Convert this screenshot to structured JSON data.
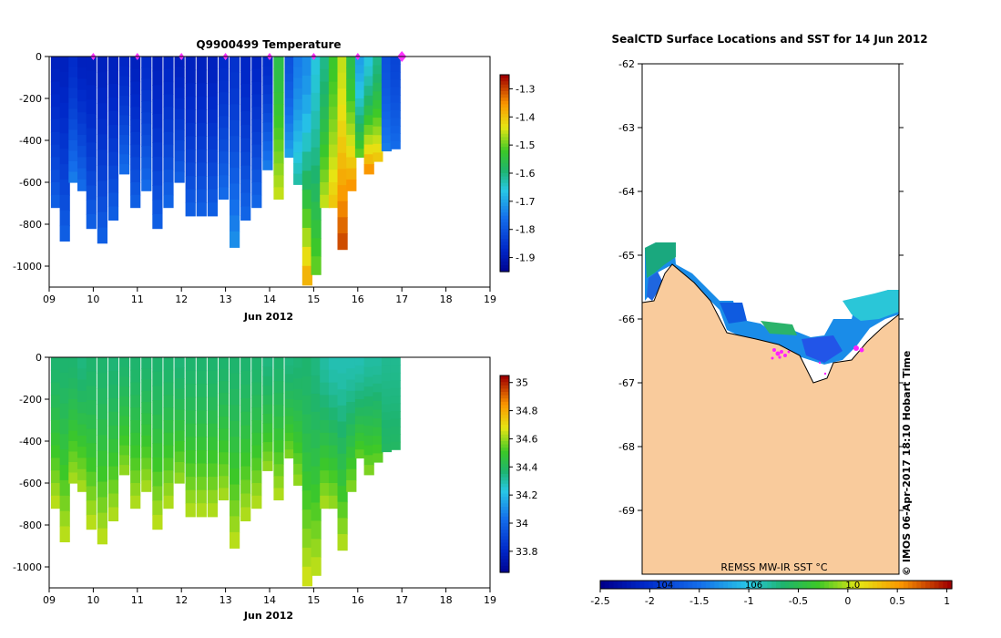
{
  "chart_data": [
    {
      "type": "heatmap",
      "title": "Q9900499  Temperature",
      "xlabel": "Jun 2012",
      "x_ticks": [
        "09",
        "10",
        "11",
        "12",
        "13",
        "14",
        "15",
        "16",
        "17",
        "18",
        "19"
      ],
      "xlim": [
        9,
        19
      ],
      "ylim": [
        -1100,
        0
      ],
      "y_ticks": [
        0,
        -200,
        -400,
        -600,
        -800,
        -1000
      ],
      "colorbar": {
        "min": -1.95,
        "max": -1.25,
        "ticks": [
          -1.3,
          -1.4,
          -1.5,
          -1.6,
          -1.7,
          -1.8,
          -1.9
        ]
      },
      "surface_markers_days": [
        10.0,
        11.0,
        12.0,
        13.0,
        14.0,
        15.0,
        16.0,
        17.0
      ],
      "profiles": [
        {
          "day": 9.15,
          "depth": -720,
          "surf": -1.88,
          "deep": -1.78
        },
        {
          "day": 9.35,
          "depth": -880,
          "surf": -1.88,
          "deep": -1.78
        },
        {
          "day": 9.55,
          "depth": -600,
          "surf": -1.86,
          "deep": -1.74
        },
        {
          "day": 9.75,
          "depth": -640,
          "surf": -1.88,
          "deep": -1.76
        },
        {
          "day": 9.95,
          "depth": -820,
          "surf": -1.88,
          "deep": -1.78
        },
        {
          "day": 10.2,
          "depth": -890,
          "surf": -1.88,
          "deep": -1.78
        },
        {
          "day": 10.45,
          "depth": -780,
          "surf": -1.88,
          "deep": -1.78
        },
        {
          "day": 10.7,
          "depth": -560,
          "surf": -1.87,
          "deep": -1.76
        },
        {
          "day": 10.95,
          "depth": -720,
          "surf": -1.88,
          "deep": -1.78
        },
        {
          "day": 11.2,
          "depth": -640,
          "surf": -1.86,
          "deep": -1.76
        },
        {
          "day": 11.45,
          "depth": -820,
          "surf": -1.88,
          "deep": -1.78
        },
        {
          "day": 11.7,
          "depth": -720,
          "surf": -1.87,
          "deep": -1.77
        },
        {
          "day": 11.95,
          "depth": -600,
          "surf": -1.88,
          "deep": -1.78
        },
        {
          "day": 12.2,
          "depth": -760,
          "surf": -1.88,
          "deep": -1.78
        },
        {
          "day": 12.45,
          "depth": -760,
          "surf": -1.88,
          "deep": -1.78
        },
        {
          "day": 12.7,
          "depth": -760,
          "surf": -1.88,
          "deep": -1.78
        },
        {
          "day": 12.95,
          "depth": -680,
          "surf": -1.86,
          "deep": -1.76
        },
        {
          "day": 13.2,
          "depth": -910,
          "surf": -1.85,
          "deep": -1.72
        },
        {
          "day": 13.45,
          "depth": -780,
          "surf": -1.87,
          "deep": -1.77
        },
        {
          "day": 13.7,
          "depth": -720,
          "surf": -1.87,
          "deep": -1.77
        },
        {
          "day": 13.95,
          "depth": -540,
          "surf": -1.86,
          "deep": -1.74
        },
        {
          "day": 14.2,
          "depth": -680,
          "surf": -1.55,
          "deep": -1.45
        },
        {
          "day": 14.45,
          "depth": -480,
          "surf": -1.8,
          "deep": -1.7
        },
        {
          "day": 14.65,
          "depth": -610,
          "surf": -1.74,
          "deep": -1.62
        },
        {
          "day": 14.85,
          "depth": -1090,
          "surf": -1.72,
          "deep": -1.38
        },
        {
          "day": 15.05,
          "depth": -1040,
          "surf": -1.65,
          "deep": -1.5
        },
        {
          "day": 15.25,
          "depth": -720,
          "surf": -1.6,
          "deep": -1.45
        },
        {
          "day": 15.45,
          "depth": -720,
          "surf": -1.52,
          "deep": -1.4
        },
        {
          "day": 15.65,
          "depth": -920,
          "surf": -1.45,
          "deep": -1.3
        },
        {
          "day": 15.85,
          "depth": -640,
          "surf": -1.55,
          "deep": -1.35
        },
        {
          "day": 16.05,
          "depth": -480,
          "surf": -1.7,
          "deep": -1.5
        },
        {
          "day": 16.25,
          "depth": -560,
          "surf": -1.65,
          "deep": -1.35
        },
        {
          "day": 16.45,
          "depth": -500,
          "surf": -1.6,
          "deep": -1.4
        },
        {
          "day": 16.65,
          "depth": -450,
          "surf": -1.8,
          "deep": -1.74
        },
        {
          "day": 16.85,
          "depth": -440,
          "surf": -1.82,
          "deep": -1.76
        }
      ]
    },
    {
      "type": "heatmap",
      "title": "",
      "xlabel": "Jun 2012",
      "x_ticks": [
        "09",
        "10",
        "11",
        "12",
        "13",
        "14",
        "15",
        "16",
        "17",
        "18",
        "19"
      ],
      "xlim": [
        9,
        19
      ],
      "ylim": [
        -1100,
        0
      ],
      "y_ticks": [
        0,
        -200,
        -400,
        -600,
        -800,
        -1000
      ],
      "colorbar": {
        "min": 33.65,
        "max": 35.05,
        "ticks": [
          35,
          34.8,
          34.6,
          34.4,
          34.2,
          34,
          33.8
        ]
      },
      "profiles": [
        {
          "day": 9.15,
          "depth": -720,
          "surf": 34.38,
          "deep": 34.64
        },
        {
          "day": 9.35,
          "depth": -880,
          "surf": 34.38,
          "deep": 34.64
        },
        {
          "day": 9.55,
          "depth": -600,
          "surf": 34.38,
          "deep": 34.62
        },
        {
          "day": 9.75,
          "depth": -640,
          "surf": 34.36,
          "deep": 34.62
        },
        {
          "day": 9.95,
          "depth": -820,
          "surf": 34.38,
          "deep": 34.64
        },
        {
          "day": 10.2,
          "depth": -890,
          "surf": 34.38,
          "deep": 34.64
        },
        {
          "day": 10.45,
          "depth": -780,
          "surf": 34.37,
          "deep": 34.63
        },
        {
          "day": 10.7,
          "depth": -560,
          "surf": 34.38,
          "deep": 34.6
        },
        {
          "day": 10.95,
          "depth": -720,
          "surf": 34.38,
          "deep": 34.63
        },
        {
          "day": 11.2,
          "depth": -640,
          "surf": 34.38,
          "deep": 34.62
        },
        {
          "day": 11.45,
          "depth": -820,
          "surf": 34.38,
          "deep": 34.64
        },
        {
          "day": 11.7,
          "depth": -720,
          "surf": 34.38,
          "deep": 34.63
        },
        {
          "day": 11.95,
          "depth": -600,
          "surf": 34.37,
          "deep": 34.6
        },
        {
          "day": 12.2,
          "depth": -760,
          "surf": 34.38,
          "deep": 34.63
        },
        {
          "day": 12.45,
          "depth": -760,
          "surf": 34.38,
          "deep": 34.63
        },
        {
          "day": 12.7,
          "depth": -760,
          "surf": 34.38,
          "deep": 34.63
        },
        {
          "day": 12.95,
          "depth": -680,
          "surf": 34.38,
          "deep": 34.62
        },
        {
          "day": 13.2,
          "depth": -910,
          "surf": 34.38,
          "deep": 34.64
        },
        {
          "day": 13.45,
          "depth": -780,
          "surf": 34.38,
          "deep": 34.63
        },
        {
          "day": 13.7,
          "depth": -720,
          "surf": 34.38,
          "deep": 34.63
        },
        {
          "day": 13.95,
          "depth": -540,
          "surf": 34.36,
          "deep": 34.6
        },
        {
          "day": 14.2,
          "depth": -680,
          "surf": 34.38,
          "deep": 34.63
        },
        {
          "day": 14.45,
          "depth": -480,
          "surf": 34.36,
          "deep": 34.58
        },
        {
          "day": 14.65,
          "depth": -610,
          "surf": 34.37,
          "deep": 34.6
        },
        {
          "day": 14.85,
          "depth": -1090,
          "surf": 34.38,
          "deep": 34.66
        },
        {
          "day": 15.05,
          "depth": -1040,
          "surf": 34.36,
          "deep": 34.64
        },
        {
          "day": 15.25,
          "depth": -720,
          "surf": 34.32,
          "deep": 34.62
        },
        {
          "day": 15.45,
          "depth": -720,
          "surf": 34.3,
          "deep": 34.6
        },
        {
          "day": 15.65,
          "depth": -920,
          "surf": 34.3,
          "deep": 34.63
        },
        {
          "day": 15.85,
          "depth": -640,
          "surf": 34.3,
          "deep": 34.58
        },
        {
          "day": 16.05,
          "depth": -480,
          "surf": 34.3,
          "deep": 34.55
        },
        {
          "day": 16.25,
          "depth": -560,
          "surf": 34.32,
          "deep": 34.58
        },
        {
          "day": 16.45,
          "depth": -500,
          "surf": 34.32,
          "deep": 34.55
        },
        {
          "day": 16.65,
          "depth": -450,
          "surf": 34.34,
          "deep": 34.4
        },
        {
          "day": 16.85,
          "depth": -440,
          "surf": 34.34,
          "deep": 34.4
        }
      ]
    },
    {
      "type": "map",
      "title": "SealCTD Surface Locations and SST for 14 Jun 2012",
      "ylim": [
        -70,
        -62
      ],
      "y_ticks": [
        "-62",
        "-63",
        "-64",
        "-65",
        "-66",
        "-67",
        "-68",
        "-69"
      ],
      "land_label": "REMSS MW-IR SST °C",
      "colorbar": {
        "min": -2.5,
        "max": 1.05,
        "ticks": [
          "-2.5",
          "-2",
          "-1.5",
          "-1",
          "-0.5",
          "0",
          "0.5",
          "1"
        ],
        "contour_labels": [
          "104",
          "106",
          "1.0"
        ]
      },
      "land_color": "#f9cb9c",
      "credit": "©  IMOS 06-Apr-2017 18:10 Hobart Time"
    }
  ]
}
